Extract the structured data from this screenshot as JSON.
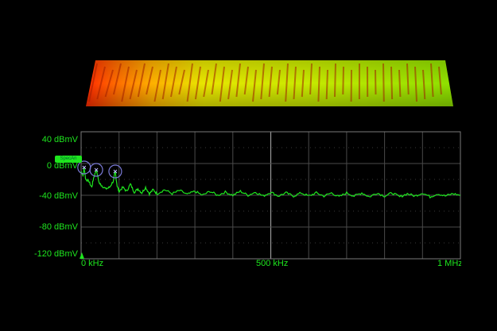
{
  "theme": {
    "background": "#000000",
    "trace": "#1ee61e",
    "grid": "#6e6e6e",
    "marker_circle": "#7a7ad6"
  },
  "marker": {
    "label": "SpecAn"
  },
  "chart_data": {
    "type": "line",
    "title": "",
    "xlabel": "",
    "ylabel": "",
    "x_unit": "kHz",
    "x_ticks": [
      {
        "value": 0,
        "label": "0 kHz"
      },
      {
        "value": 500,
        "label": "500 kHz"
      },
      {
        "value": 1000,
        "label": "1 MHz"
      }
    ],
    "y_ticks": [
      {
        "value": 40,
        "label": "40 dBmV"
      },
      {
        "value": 0,
        "label": "0 dBmV"
      },
      {
        "value": -40,
        "label": "-40 dBmV"
      },
      {
        "value": -80,
        "label": "-80 dBmV"
      },
      {
        "value": -120,
        "label": "-120 dBmV"
      }
    ],
    "xlim": [
      0,
      1000
    ],
    "ylim": [
      -120,
      40
    ],
    "grid": true,
    "markers_khz": [
      8,
      40,
      90
    ],
    "series": [
      {
        "x": [
          0,
          5,
          8,
          12,
          20,
          28,
          33,
          40,
          48,
          55,
          65,
          75,
          85,
          90,
          95,
          100,
          110,
          120,
          130,
          140,
          150,
          160,
          170,
          180,
          190,
          200,
          220,
          240,
          260,
          280,
          300,
          320,
          340,
          360,
          380,
          400,
          420,
          440,
          460,
          480,
          500,
          520,
          540,
          560,
          580,
          600,
          620,
          640,
          660,
          680,
          700,
          720,
          740,
          760,
          780,
          800,
          820,
          840,
          860,
          880,
          900,
          920,
          940,
          960,
          980,
          1000
        ],
        "y": [
          -10,
          -15,
          -5,
          -20,
          -22,
          -30,
          -18,
          -8,
          -25,
          -28,
          -32,
          -30,
          -22,
          -10,
          -28,
          -35,
          -30,
          -35,
          -26,
          -36,
          -32,
          -37,
          -30,
          -38,
          -33,
          -38,
          -33,
          -38,
          -34,
          -39,
          -35,
          -40,
          -35,
          -40,
          -36,
          -40,
          -35,
          -40,
          -36,
          -41,
          -36,
          -41,
          -37,
          -41,
          -37,
          -41,
          -37,
          -41,
          -37,
          -42,
          -37,
          -41,
          -37,
          -42,
          -37,
          -41,
          -37,
          -42,
          -38,
          -41,
          -37,
          -42,
          -38,
          -41,
          -38,
          -40
        ]
      }
    ]
  }
}
